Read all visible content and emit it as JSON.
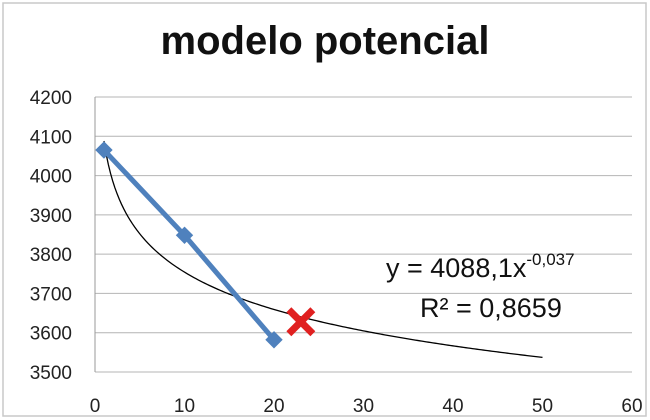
{
  "chart_data": {
    "type": "scatter",
    "title": "modelo potencial",
    "xlim": [
      0,
      60
    ],
    "ylim": [
      3500,
      4200
    ],
    "x_ticks": [
      "0",
      "10",
      "20",
      "30",
      "40",
      "50",
      "60"
    ],
    "y_ticks": [
      "3500",
      "3600",
      "3700",
      "3800",
      "3900",
      "4000",
      "4100",
      "4200"
    ],
    "grid": "horizontal",
    "series": [
      {
        "style": "line-with-diamond-markers",
        "color": "#4f81bd",
        "points": [
          {
            "x": 1,
            "y": 4065
          },
          {
            "x": 10,
            "y": 3848
          },
          {
            "x": 20,
            "y": 3582
          }
        ]
      }
    ],
    "trendline": {
      "model": "power",
      "coefficient": 4088.1,
      "exponent": -0.037,
      "x_from": 1,
      "x_to": 50,
      "color": "#000000"
    },
    "highlight_point": {
      "x": 23,
      "y": 3628,
      "marker": "x",
      "color": "#e02020"
    },
    "annotations": {
      "equation_base": "y = 4088,1x",
      "equation_exponent": "-0,037",
      "r_squared": "R² = 0,8659"
    }
  }
}
